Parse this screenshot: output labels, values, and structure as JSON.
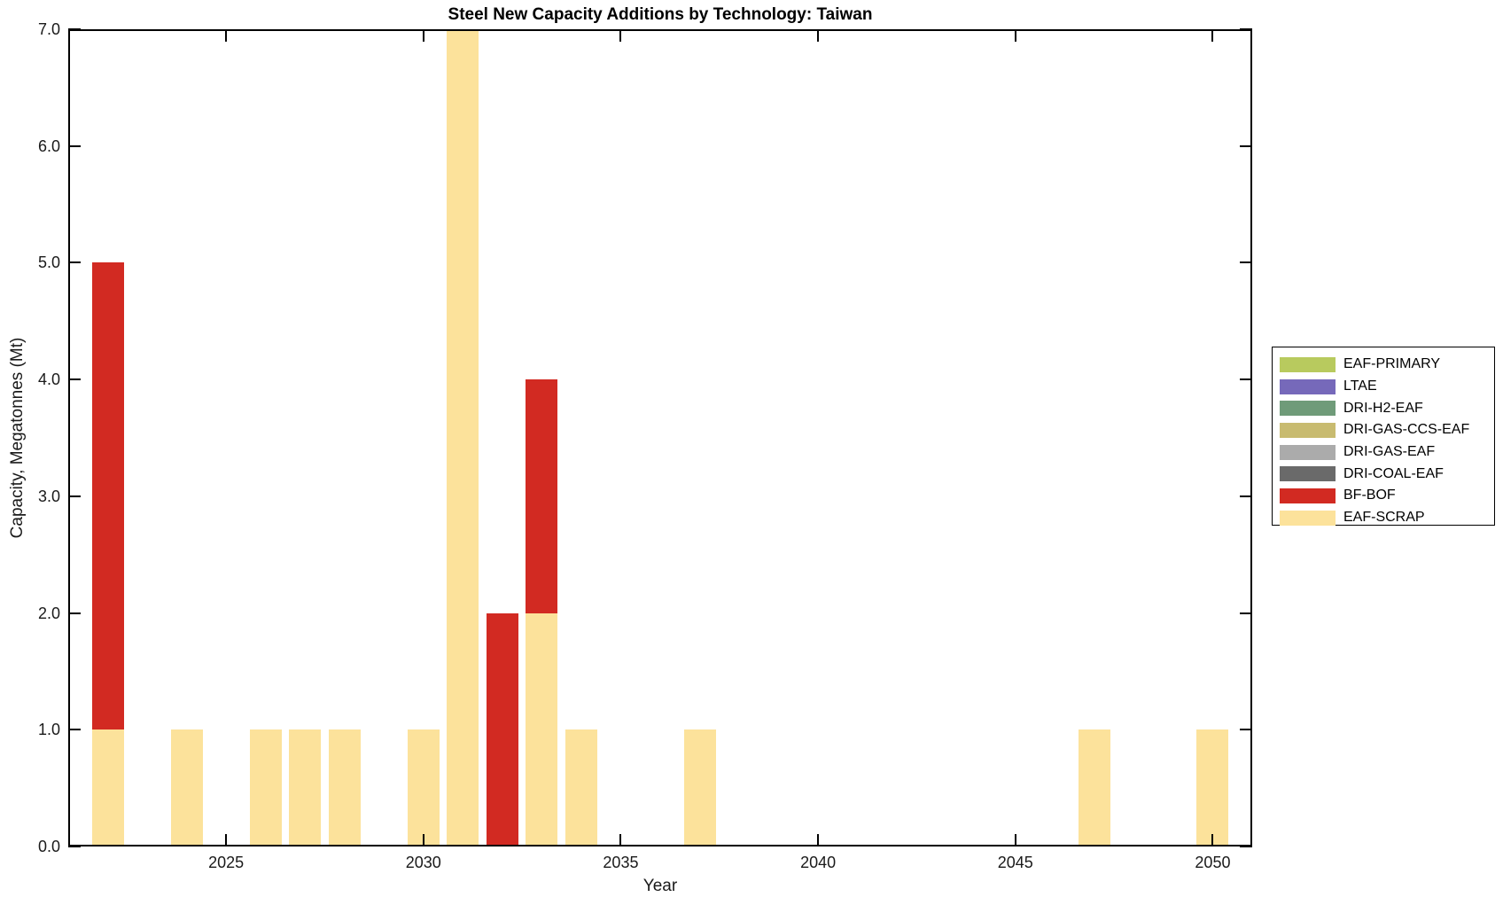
{
  "title": "Steel New Capacity Additions by Technology: Taiwan",
  "axes": {
    "xlabel": "Year",
    "ylabel": "Capacity, Megatonnes (Mt)",
    "x_ticks": [
      2025,
      2030,
      2035,
      2040,
      2045,
      2050
    ],
    "y_ticks": [
      "0.0",
      "1.0",
      "2.0",
      "3.0",
      "4.0",
      "5.0",
      "6.0",
      "7.0"
    ],
    "x_range": [
      2021,
      2051
    ],
    "y_range": [
      0,
      7
    ]
  },
  "legend": {
    "position": "right-outside",
    "entries": [
      {
        "label": "EAF-PRIMARY",
        "color": "#B8CA5E"
      },
      {
        "label": "LTAE",
        "color": "#7669BA"
      },
      {
        "label": "DRI-H2-EAF",
        "color": "#6F9B79"
      },
      {
        "label": "DRI-GAS-CCS-EAF",
        "color": "#C8BB70"
      },
      {
        "label": "DRI-GAS-EAF",
        "color": "#ABABAB"
      },
      {
        "label": "DRI-COAL-EAF",
        "color": "#6A6A6A"
      },
      {
        "label": "BF-BOF",
        "color": "#D22A22"
      },
      {
        "label": "EAF-SCRAP",
        "color": "#FCE29B"
      }
    ]
  },
  "chart_data": {
    "type": "bar",
    "stacked": true,
    "title": "Steel New Capacity Additions by Technology: Taiwan",
    "xlabel": "Year",
    "ylabel": "Capacity, Megatonnes (Mt)",
    "xlim": [
      2021,
      2051
    ],
    "ylim": [
      0,
      7
    ],
    "grid": false,
    "bar_width_years": 0.8,
    "legend_position": "right-outside",
    "series_order_bottom_to_top": [
      "EAF-SCRAP",
      "BF-BOF"
    ],
    "bars": [
      {
        "year": 2022,
        "total": 5.0,
        "segments": [
          {
            "tech": "EAF-SCRAP",
            "value": 1.0
          },
          {
            "tech": "BF-BOF",
            "value": 4.0
          }
        ]
      },
      {
        "year": 2024,
        "total": 1.0,
        "segments": [
          {
            "tech": "EAF-SCRAP",
            "value": 1.0
          }
        ]
      },
      {
        "year": 2026,
        "total": 1.0,
        "segments": [
          {
            "tech": "EAF-SCRAP",
            "value": 1.0
          }
        ]
      },
      {
        "year": 2027,
        "total": 1.0,
        "segments": [
          {
            "tech": "EAF-SCRAP",
            "value": 1.0
          }
        ]
      },
      {
        "year": 2028,
        "total": 1.0,
        "segments": [
          {
            "tech": "EAF-SCRAP",
            "value": 1.0
          }
        ]
      },
      {
        "year": 2030,
        "total": 1.0,
        "segments": [
          {
            "tech": "EAF-SCRAP",
            "value": 1.0
          }
        ]
      },
      {
        "year": 2031,
        "total": 7.0,
        "segments": [
          {
            "tech": "EAF-SCRAP",
            "value": 7.0
          }
        ]
      },
      {
        "year": 2032,
        "total": 2.0,
        "segments": [
          {
            "tech": "BF-BOF",
            "value": 2.0
          }
        ]
      },
      {
        "year": 2033,
        "total": 4.0,
        "segments": [
          {
            "tech": "EAF-SCRAP",
            "value": 2.0
          },
          {
            "tech": "BF-BOF",
            "value": 2.0
          }
        ]
      },
      {
        "year": 2034,
        "total": 1.0,
        "segments": [
          {
            "tech": "EAF-SCRAP",
            "value": 1.0
          }
        ]
      },
      {
        "year": 2037,
        "total": 1.0,
        "segments": [
          {
            "tech": "EAF-SCRAP",
            "value": 1.0
          }
        ]
      },
      {
        "year": 2047,
        "total": 1.0,
        "segments": [
          {
            "tech": "EAF-SCRAP",
            "value": 1.0
          }
        ]
      },
      {
        "year": 2050,
        "total": 1.0,
        "segments": [
          {
            "tech": "EAF-SCRAP",
            "value": 1.0
          }
        ]
      }
    ]
  }
}
